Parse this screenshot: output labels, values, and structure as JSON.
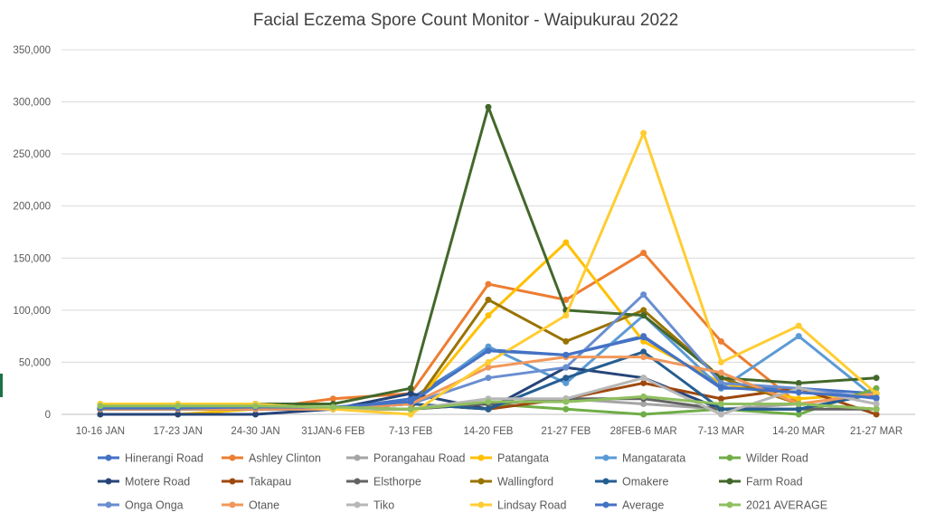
{
  "chart_data": {
    "type": "line",
    "title": "Facial Eczema Spore Count Monitor - Waipukurau 2022",
    "xlabel": "",
    "ylabel": "",
    "ylim": [
      0,
      350000
    ],
    "y_ticks": [
      0,
      50000,
      100000,
      150000,
      200000,
      250000,
      300000,
      350000
    ],
    "y_tick_labels": [
      "0",
      "50,000",
      "100,000",
      "150,000",
      "200,000",
      "250,000",
      "300,000",
      "350,000"
    ],
    "grid": true,
    "legend_position": "bottom",
    "categories": [
      "10-16 JAN",
      "17-23 JAN",
      "24-30 JAN",
      "31JAN-6 FEB",
      "7-13 FEB",
      "14-20 FEB",
      "21-27 FEB",
      "28FEB-6 MAR",
      "7-13 MAR",
      "14-20 MAR",
      "21-27 MAR"
    ],
    "series": [
      {
        "name": "Hinerangi Road",
        "color": "#4472c4",
        "values": [
          5000,
          5000,
          5000,
          5000,
          15000,
          62000,
          57000,
          75000,
          25000,
          25000,
          20000
        ]
      },
      {
        "name": "Ashley Clinton",
        "color": "#ed7d31",
        "values": [
          5000,
          5000,
          5000,
          15000,
          20000,
          125000,
          110000,
          155000,
          70000,
          10000,
          20000
        ]
      },
      {
        "name": "Porangahau Road",
        "color": "#a5a5a5",
        "values": [
          5000,
          5000,
          5000,
          5000,
          5000,
          10000,
          15000,
          10000,
          5000,
          10000,
          5000
        ]
      },
      {
        "name": "Patangata",
        "color": "#ffc000",
        "values": [
          0,
          0,
          5000,
          5000,
          5000,
          95000,
          165000,
          70000,
          30000,
          15000,
          20000
        ]
      },
      {
        "name": "Mangatarata",
        "color": "#5b9bd5",
        "values": [
          5000,
          5000,
          5000,
          5000,
          10000,
          65000,
          30000,
          95000,
          25000,
          75000,
          15000
        ]
      },
      {
        "name": "Wilder Road",
        "color": "#70ad47",
        "values": [
          5000,
          5000,
          10000,
          5000,
          5000,
          10000,
          5000,
          0,
          5000,
          0,
          25000
        ]
      },
      {
        "name": "Motere Road",
        "color": "#264478",
        "values": [
          0,
          0,
          0,
          5000,
          20000,
          5000,
          45000,
          35000,
          5000,
          5000,
          20000
        ]
      },
      {
        "name": "Takapau",
        "color": "#9e480e",
        "values": [
          5000,
          5000,
          5000,
          5000,
          10000,
          5000,
          15000,
          30000,
          15000,
          25000,
          0
        ]
      },
      {
        "name": "Elsthorpe",
        "color": "#636363",
        "values": [
          5000,
          5000,
          5000,
          5000,
          5000,
          10000,
          15000,
          15000,
          5000,
          5000,
          5000
        ]
      },
      {
        "name": "Wallingford",
        "color": "#997300",
        "values": [
          5000,
          5000,
          5000,
          5000,
          5000,
          110000,
          70000,
          100000,
          35000,
          10000,
          5000
        ]
      },
      {
        "name": "Omakere",
        "color": "#255e91",
        "values": [
          5000,
          5000,
          5000,
          5000,
          10000,
          5000,
          35000,
          60000,
          5000,
          5000,
          20000
        ]
      },
      {
        "name": "Farm Road",
        "color": "#43682b",
        "values": [
          5000,
          5000,
          10000,
          10000,
          25000,
          295000,
          100000,
          95000,
          35000,
          30000,
          35000
        ]
      },
      {
        "name": "Onga Onga",
        "color": "#698ed0",
        "values": [
          5000,
          5000,
          5000,
          5000,
          10000,
          35000,
          45000,
          115000,
          30000,
          25000,
          15000
        ]
      },
      {
        "name": "Otane",
        "color": "#f1975a",
        "values": [
          5000,
          5000,
          5000,
          5000,
          10000,
          45000,
          55000,
          55000,
          40000,
          10000,
          20000
        ]
      },
      {
        "name": "Tiko",
        "color": "#b7b7b7",
        "values": [
          10000,
          10000,
          10000,
          5000,
          5000,
          15000,
          15000,
          35000,
          0,
          25000,
          10000
        ]
      },
      {
        "name": "Lindsay Road",
        "color": "#ffcd33",
        "values": [
          10000,
          10000,
          10000,
          5000,
          0,
          50000,
          95000,
          270000,
          50000,
          85000,
          20000
        ]
      },
      {
        "name": "Average",
        "color": "#4472c4",
        "values": [
          6000,
          6000,
          7000,
          7000,
          12000,
          61000,
          57000,
          74000,
          26000,
          21000,
          16000
        ]
      },
      {
        "name": "2021 AVERAGE",
        "color": "#8fbf5f",
        "values": [
          8000,
          8000,
          8000,
          7000,
          5000,
          12000,
          12000,
          17000,
          10000,
          10000,
          5000
        ]
      }
    ]
  }
}
